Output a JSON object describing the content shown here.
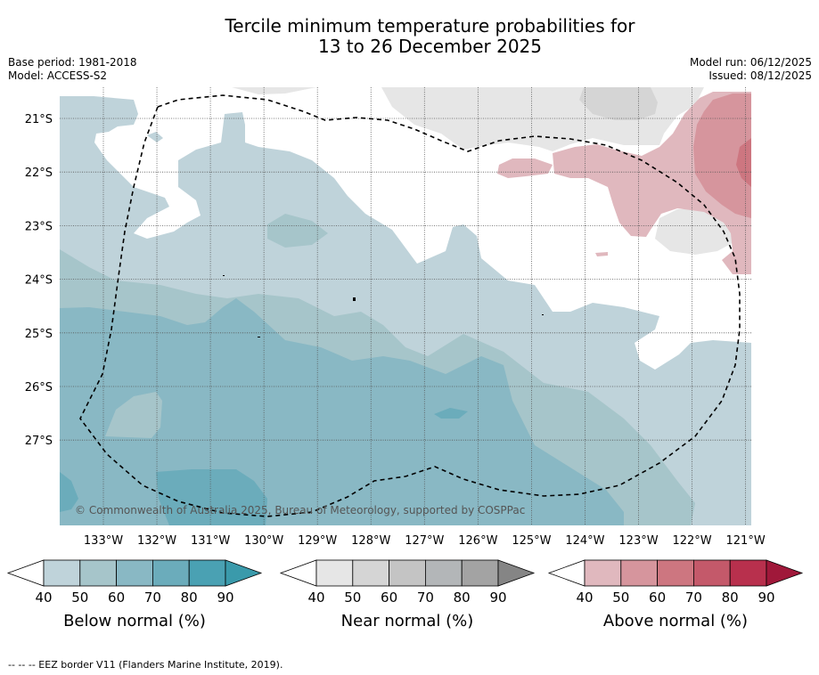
{
  "header": {
    "title_line1": "Tercile minimum temperature probabilities for",
    "title_line2": "13 to 26 December 2025",
    "base_period": "Base period: 1981-2018",
    "model": "Model: ACCESS-S2",
    "model_run": "Model run: 06/12/2025",
    "issued": "Issued: 08/12/2025"
  },
  "map": {
    "lat_labels": [
      "21°S",
      "22°S",
      "23°S",
      "24°S",
      "25°S",
      "26°S",
      "27°S"
    ],
    "lon_labels": [
      "133°W",
      "132°W",
      "131°W",
      "130°W",
      "129°W",
      "128°W",
      "127°W",
      "126°W",
      "125°W",
      "124°W",
      "123°W",
      "122°W",
      "121°W"
    ],
    "copyright": "© Commonwealth of Australia 2025, Bureau of Meteorology, supported by COSPPac"
  },
  "colorbars": [
    {
      "title": "Below normal (%)",
      "ticks": [
        "40",
        "50",
        "60",
        "70",
        "80",
        "90"
      ],
      "colors": [
        "#bfd3da",
        "#a6c5ca",
        "#89b8c4",
        "#6bacbb",
        "#4aa1b3",
        "#3a9aab"
      ]
    },
    {
      "title": "Near normal (%)",
      "ticks": [
        "40",
        "50",
        "60",
        "70",
        "80",
        "90"
      ],
      "colors": [
        "#e6e6e6",
        "#d5d5d5",
        "#c4c4c4",
        "#b3b6b8",
        "#a3a3a3",
        "#858585"
      ]
    },
    {
      "title": "Above normal (%)",
      "ticks": [
        "40",
        "50",
        "60",
        "70",
        "80",
        "90"
      ],
      "colors": [
        "#e0b8be",
        "#d6959d",
        "#cd7680",
        "#c4596a",
        "#b8304d",
        "#a0183a"
      ]
    }
  ],
  "footnote": "--  --  -- EEZ border V11 (Flanders Marine Institute, 2019)."
}
